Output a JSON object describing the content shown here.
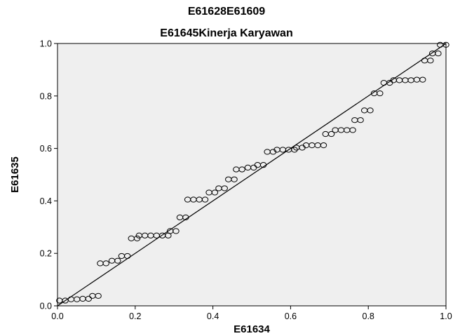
{
  "chart_data": {
    "type": "scatter",
    "title": "E61628E61609",
    "subtitle": "E61645Kinerja Karyawan",
    "xlabel": "E61634",
    "ylabel": "E61635",
    "xlim": [
      0,
      1.0
    ],
    "ylim": [
      0,
      1.0
    ],
    "x_ticks": [
      "0.0",
      "0.2",
      "0.4",
      "0.6",
      "0.8",
      "1.0"
    ],
    "y_ticks": [
      "0.0",
      "0.2",
      "0.4",
      "0.6",
      "0.8",
      "1.0"
    ],
    "grid": false,
    "reference_line": [
      [
        0,
        0
      ],
      [
        1,
        1
      ]
    ],
    "points": [
      [
        0.005,
        0.02
      ],
      [
        0.02,
        0.02
      ],
      [
        0.035,
        0.025
      ],
      [
        0.05,
        0.025
      ],
      [
        0.065,
        0.027
      ],
      [
        0.08,
        0.027
      ],
      [
        0.09,
        0.038
      ],
      [
        0.105,
        0.038
      ],
      [
        0.11,
        0.162
      ],
      [
        0.125,
        0.162
      ],
      [
        0.14,
        0.172
      ],
      [
        0.155,
        0.172
      ],
      [
        0.165,
        0.19
      ],
      [
        0.18,
        0.19
      ],
      [
        0.19,
        0.257
      ],
      [
        0.205,
        0.257
      ],
      [
        0.21,
        0.268
      ],
      [
        0.225,
        0.268
      ],
      [
        0.24,
        0.268
      ],
      [
        0.255,
        0.268
      ],
      [
        0.27,
        0.268
      ],
      [
        0.285,
        0.268
      ],
      [
        0.29,
        0.285
      ],
      [
        0.305,
        0.285
      ],
      [
        0.315,
        0.337
      ],
      [
        0.33,
        0.337
      ],
      [
        0.335,
        0.405
      ],
      [
        0.35,
        0.405
      ],
      [
        0.365,
        0.405
      ],
      [
        0.38,
        0.405
      ],
      [
        0.39,
        0.432
      ],
      [
        0.405,
        0.432
      ],
      [
        0.415,
        0.448
      ],
      [
        0.43,
        0.448
      ],
      [
        0.44,
        0.482
      ],
      [
        0.455,
        0.482
      ],
      [
        0.46,
        0.52
      ],
      [
        0.475,
        0.52
      ],
      [
        0.49,
        0.527
      ],
      [
        0.505,
        0.527
      ],
      [
        0.515,
        0.537
      ],
      [
        0.53,
        0.537
      ],
      [
        0.54,
        0.587
      ],
      [
        0.555,
        0.587
      ],
      [
        0.565,
        0.595
      ],
      [
        0.58,
        0.595
      ],
      [
        0.595,
        0.595
      ],
      [
        0.61,
        0.595
      ],
      [
        0.615,
        0.603
      ],
      [
        0.63,
        0.603
      ],
      [
        0.64,
        0.612
      ],
      [
        0.655,
        0.612
      ],
      [
        0.67,
        0.612
      ],
      [
        0.685,
        0.612
      ],
      [
        0.69,
        0.655
      ],
      [
        0.705,
        0.655
      ],
      [
        0.715,
        0.67
      ],
      [
        0.73,
        0.67
      ],
      [
        0.745,
        0.67
      ],
      [
        0.76,
        0.67
      ],
      [
        0.765,
        0.708
      ],
      [
        0.78,
        0.708
      ],
      [
        0.79,
        0.745
      ],
      [
        0.805,
        0.745
      ],
      [
        0.815,
        0.81
      ],
      [
        0.83,
        0.81
      ],
      [
        0.84,
        0.85
      ],
      [
        0.855,
        0.85
      ],
      [
        0.865,
        0.86
      ],
      [
        0.88,
        0.86
      ],
      [
        0.895,
        0.86
      ],
      [
        0.91,
        0.86
      ],
      [
        0.925,
        0.862
      ],
      [
        0.94,
        0.862
      ],
      [
        0.945,
        0.935
      ],
      [
        0.96,
        0.935
      ],
      [
        0.965,
        0.962
      ],
      [
        0.98,
        0.962
      ],
      [
        0.985,
        0.995
      ],
      [
        1.0,
        0.995
      ]
    ]
  }
}
